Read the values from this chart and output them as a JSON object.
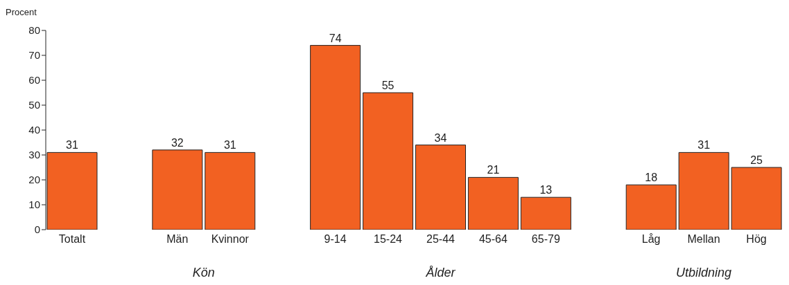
{
  "chart_data": {
    "type": "bar",
    "ylabel": "Procent",
    "categories": [
      "Totalt",
      null,
      "Män",
      "Kvinnor",
      null,
      "9-14",
      "15-24",
      "25-44",
      "45-64",
      "65-79",
      null,
      "Låg",
      "Mellan",
      "Hög"
    ],
    "values": [
      31,
      null,
      32,
      31,
      null,
      74,
      55,
      34,
      21,
      13,
      null,
      18,
      31,
      25
    ],
    "color": "#f26122",
    "ylim": [
      0,
      80
    ],
    "yticks": [
      0,
      10,
      20,
      30,
      40,
      50,
      60,
      70,
      80
    ],
    "grid": false,
    "data_labels": true,
    "annotations": [
      "Kön",
      "Ålder",
      "Utbildning"
    ]
  }
}
